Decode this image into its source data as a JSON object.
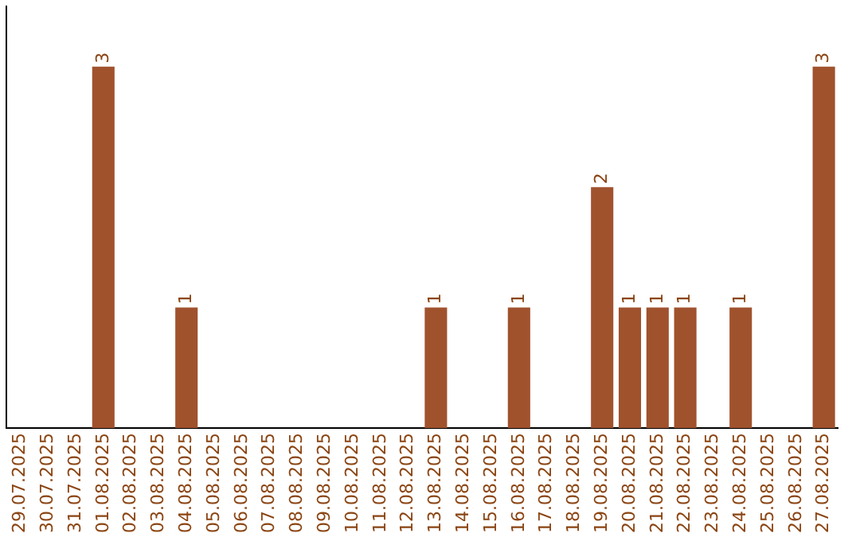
{
  "chart_data": {
    "type": "bar",
    "categories": [
      "29.07.2025",
      "30.07.2025",
      "31.07.2025",
      "01.08.2025",
      "02.08.2025",
      "03.08.2025",
      "04.08.2025",
      "05.08.2025",
      "06.08.2025",
      "07.08.2025",
      "08.08.2025",
      "09.08.2025",
      "10.08.2025",
      "11.08.2025",
      "12.08.2025",
      "13.08.2025",
      "14.08.2025",
      "15.08.2025",
      "16.08.2025",
      "17.08.2025",
      "18.08.2025",
      "19.08.2025",
      "20.08.2025",
      "21.08.2025",
      "22.08.2025",
      "23.08.2025",
      "24.08.2025",
      "25.08.2025",
      "26.08.2025",
      "27.08.2025"
    ],
    "values": [
      0,
      0,
      0,
      3,
      0,
      0,
      1,
      0,
      0,
      0,
      0,
      0,
      0,
      0,
      0,
      1,
      0,
      0,
      1,
      0,
      0,
      2,
      1,
      1,
      1,
      0,
      1,
      0,
      0,
      3
    ],
    "value_labels": [
      null,
      null,
      null,
      "3",
      null,
      null,
      "1",
      null,
      null,
      null,
      null,
      null,
      null,
      null,
      null,
      "1",
      null,
      null,
      "1",
      null,
      null,
      "2",
      "1",
      "1",
      "1",
      null,
      "1",
      null,
      null,
      "3"
    ],
    "color": "#a0522d",
    "tick_labels": "x",
    "grid": false,
    "legend": false
  }
}
